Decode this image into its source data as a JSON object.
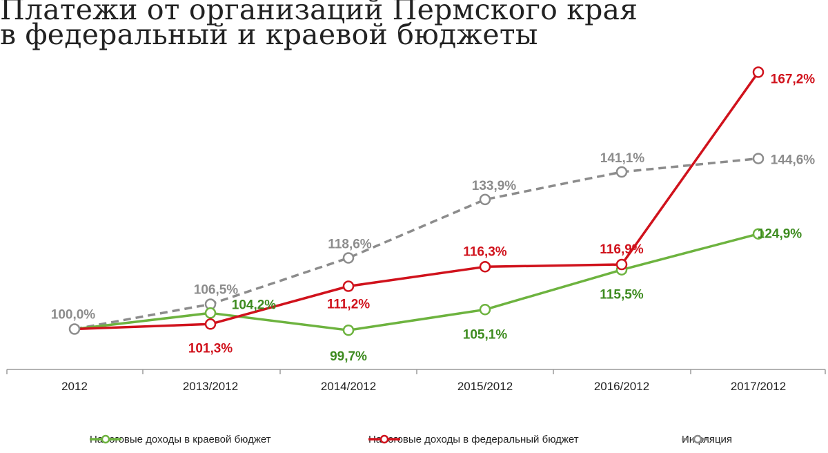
{
  "chart_data": {
    "type": "line",
    "title": [
      "Платежи от организаций Пермского края",
      "в федеральный и краевой бюджеты"
    ],
    "categories": [
      "2012",
      "2013/2012",
      "2014/2012",
      "2015/2012",
      "2016/2012",
      "2017/2012"
    ],
    "series": [
      {
        "name": "Налоговые доходы в краевой бюджет",
        "color": "#6db33f",
        "label_color": "#3d8b1f",
        "style": "solid",
        "values": [
          100.0,
          104.2,
          99.7,
          105.1,
          115.5,
          124.9
        ],
        "labels": [
          "",
          "104,2%",
          "99,7%",
          "105,1%",
          "115,5%",
          "124,9%"
        ]
      },
      {
        "name": "Налоговые доходы в федеральный бюджет",
        "color": "#d0121c",
        "label_color": "#d0121c",
        "style": "solid",
        "values": [
          100.0,
          101.3,
          111.2,
          116.3,
          116.9,
          167.2
        ],
        "labels": [
          "",
          "101,3%",
          "111,2%",
          "116,3%",
          "116,9%",
          "167,2%"
        ]
      },
      {
        "name": "Инфляция",
        "color": "#8c8c8c",
        "label_color": "#8c8c8c",
        "style": "dashed",
        "values": [
          100.0,
          106.5,
          118.6,
          133.9,
          141.1,
          144.6
        ],
        "labels": [
          "100,0%",
          "106,5%",
          "118,6%",
          "133,9%",
          "141,1%",
          "144,6%"
        ]
      }
    ],
    "legend_position": "bottom",
    "grid": false
  }
}
